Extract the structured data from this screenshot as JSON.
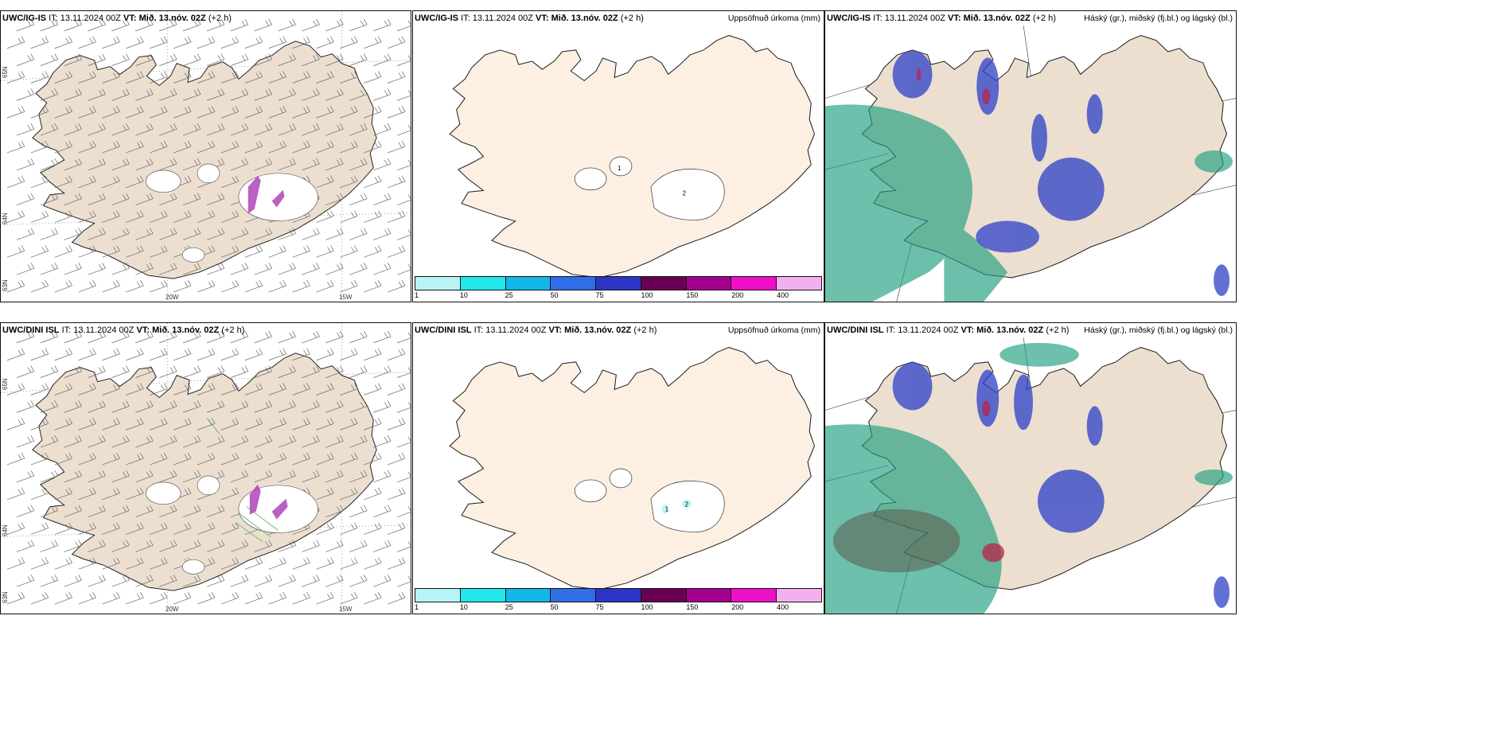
{
  "colors": {
    "land_windows": "#ecdfd0",
    "land_precip": "#fdf0e2",
    "ocean": "#ffffff",
    "colorbar": [
      "#b8f4f6",
      "#22e6ea",
      "#12b8e8",
      "#2f6ee6",
      "#2c35c6",
      "#6a0055",
      "#a3008d",
      "#ee10c7",
      "#f3b0f0"
    ],
    "cloud_low": "#1f9e7e",
    "cloud_mid": "#2d40c8",
    "cloud_high": "#b8234a"
  },
  "rows": [
    {
      "wind": {
        "model": "UWC/IG-IS",
        "it_text": "IT: 13.11.2024 00Z",
        "vt_label": "VT: Mið. 13.nóv. 02Z",
        "lead": "(+2 h)"
      },
      "precip": {
        "model": "UWC/IG-IS",
        "it_text": "IT: 13.11.2024 00Z",
        "vt_label": "VT: Mið. 13.nóv. 02Z",
        "lead": "(+2 h)",
        "title": "Uppsöfnuð úrkoma (mm)",
        "contour_labels": [
          "1",
          "2"
        ]
      },
      "cloud": {
        "model": "UWC/IG-IS",
        "it_text": "IT: 13.11.2024 00Z",
        "vt_label": "VT: Mið. 13.nóv. 02Z",
        "lead": "(+2 h)",
        "title": "Háský (gr.), miðský (fj.bl.) og lágský (bl.)"
      }
    },
    {
      "wind": {
        "model": "UWC/DINI ISL",
        "it_text": "IT: 13.11.2024 00Z",
        "vt_label": "VT: Mið. 13.nóv. 02Z",
        "lead": "(+2 h)"
      },
      "precip": {
        "model": "UWC/DINI ISL",
        "it_text": "IT: 13.11.2024 00Z",
        "vt_label": "VT: Mið. 13.nóv. 02Z",
        "lead": "(+2 h)",
        "title": "Uppsöfnuð úrkoma (mm)",
        "contour_labels": [
          "1",
          "2"
        ]
      },
      "cloud": {
        "model": "UWC/DINI ISL",
        "it_text": "IT: 13.11.2024 00Z",
        "vt_label": "VT: Mið. 13.nóv. 02Z",
        "lead": "(+2 h)",
        "title": "Háský (gr.), miðský (fj.bl.) og lágský (bl.)"
      }
    }
  ],
  "grid_labels": {
    "lat_top": "65N",
    "lat_mid": "64N",
    "lat_bottom": "63N",
    "lon_left": "20W",
    "lon_right": "15W"
  },
  "colorbar_ticks": [
    "1",
    "10",
    "25",
    "50",
    "75",
    "100",
    "150",
    "200",
    "400"
  ]
}
